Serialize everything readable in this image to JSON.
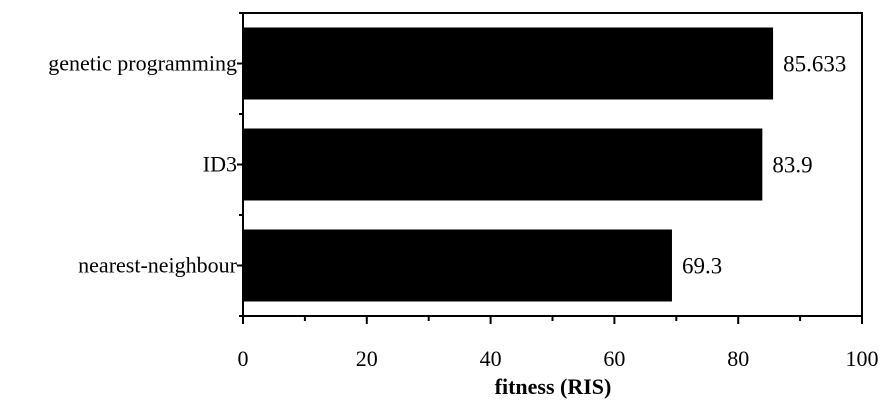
{
  "chart_data": {
    "type": "bar",
    "orientation": "horizontal",
    "categories": [
      "genetic programming",
      "ID3",
      "nearest-neighbour"
    ],
    "values": [
      85.633,
      83.9,
      69.3
    ],
    "value_labels": [
      "85.633",
      "83.9",
      "69.3"
    ],
    "title": "",
    "xlabel": "fitness (RIS)",
    "ylabel": "",
    "xlim": [
      0,
      100
    ],
    "xticks": [
      0,
      20,
      40,
      60,
      80,
      100
    ],
    "xtick_labels": [
      "0",
      "20",
      "40",
      "60",
      "80",
      "100"
    ],
    "grid": false,
    "legend": "none",
    "bar_color": "#000000"
  }
}
